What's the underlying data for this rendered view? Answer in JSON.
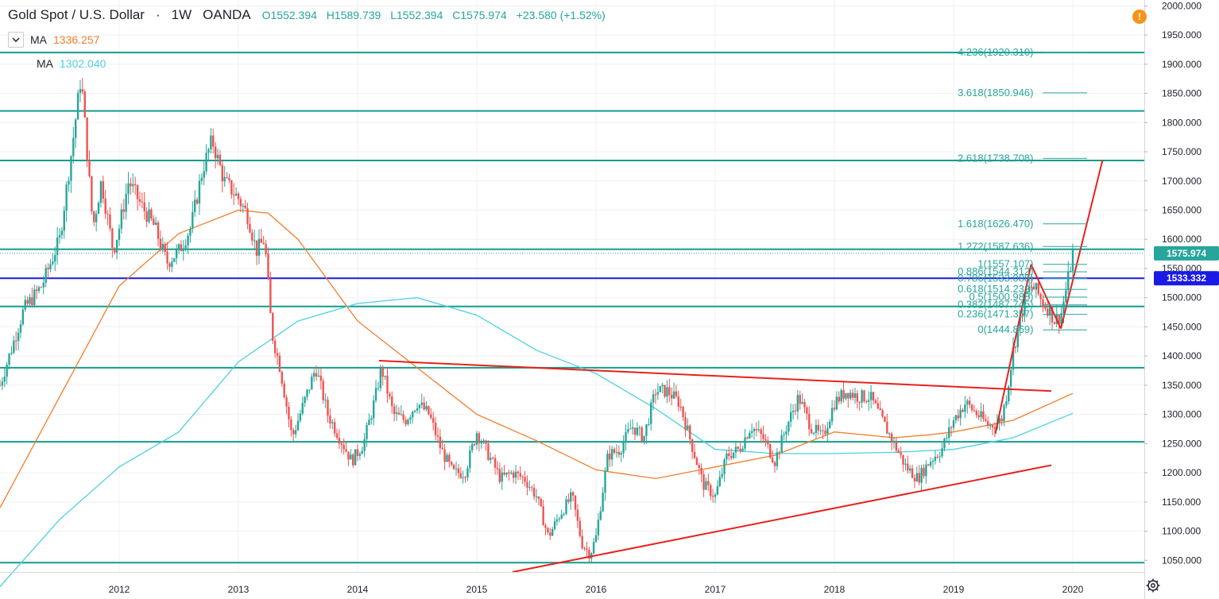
{
  "header": {
    "symbol": "Gold Spot / U.S. Dollar",
    "interval": "1W",
    "broker": "OANDA",
    "open": "O1552.394",
    "high": "H1589.739",
    "low": "L1552.394",
    "close": "C1575.974",
    "change": "+23.580 (+1.52%)"
  },
  "indicators": [
    {
      "label": "MA",
      "value": "1336.257",
      "color": "#f57c2a"
    },
    {
      "label": "MA",
      "value": "1302.040",
      "color": "#4dd0e1"
    }
  ],
  "icons": {
    "collapse": "chevron-down-icon",
    "alert": "exclamation-icon",
    "settings": "gear-icon"
  },
  "price_labels": {
    "last": "1575.974",
    "hline": "1533.332"
  },
  "colors": {
    "up": "#26a69a",
    "down": "#ef5350",
    "horizontal_line": "#159b8c",
    "blue_line": "#1a1ae6",
    "trend_line": "#e8211b",
    "ma_fast": "#f57c2a",
    "ma_slow": "#4dd0e1"
  },
  "chart_data": {
    "type": "candlestick",
    "title": "Gold Spot / U.S. Dollar",
    "x_ticks": [
      "2012",
      "2013",
      "2014",
      "2015",
      "2016",
      "2017",
      "2018",
      "2019",
      "2020"
    ],
    "y_ticks": [
      "1050.000",
      "1100.000",
      "1150.000",
      "1200.000",
      "1250.000",
      "1300.000",
      "1350.000",
      "1400.000",
      "1450.000",
      "1500.000",
      "1550.000",
      "1600.000",
      "1650.000",
      "1700.000",
      "1750.000",
      "1800.000",
      "1850.000",
      "1900.000",
      "1950.000",
      "2000.000"
    ],
    "ylim": [
      1030,
      2010
    ],
    "xlim": [
      2011.0,
      2020.6
    ],
    "price_path": [
      [
        2011.0,
        1350
      ],
      [
        2011.2,
        1480
      ],
      [
        2011.35,
        1520
      ],
      [
        2011.5,
        1600
      ],
      [
        2011.6,
        1750
      ],
      [
        2011.68,
        1880
      ],
      [
        2011.78,
        1620
      ],
      [
        2011.85,
        1700
      ],
      [
        2011.95,
        1580
      ],
      [
        2012.0,
        1620
      ],
      [
        2012.08,
        1700
      ],
      [
        2012.18,
        1660
      ],
      [
        2012.3,
        1620
      ],
      [
        2012.4,
        1560
      ],
      [
        2012.5,
        1580
      ],
      [
        2012.6,
        1620
      ],
      [
        2012.7,
        1720
      ],
      [
        2012.78,
        1770
      ],
      [
        2012.88,
        1700
      ],
      [
        2013.0,
        1670
      ],
      [
        2013.08,
        1640
      ],
      [
        2013.15,
        1580
      ],
      [
        2013.22,
        1600
      ],
      [
        2013.28,
        1440
      ],
      [
        2013.35,
        1380
      ],
      [
        2013.45,
        1260
      ],
      [
        2013.55,
        1320
      ],
      [
        2013.65,
        1380
      ],
      [
        2013.75,
        1300
      ],
      [
        2013.85,
        1260
      ],
      [
        2013.95,
        1220
      ],
      [
        2014.05,
        1250
      ],
      [
        2014.15,
        1330
      ],
      [
        2014.2,
        1380
      ],
      [
        2014.3,
        1300
      ],
      [
        2014.4,
        1290
      ],
      [
        2014.5,
        1320
      ],
      [
        2014.6,
        1300
      ],
      [
        2014.7,
        1240
      ],
      [
        2014.8,
        1200
      ],
      [
        2014.9,
        1200
      ],
      [
        2015.0,
        1270
      ],
      [
        2015.1,
        1230
      ],
      [
        2015.2,
        1190
      ],
      [
        2015.3,
        1200
      ],
      [
        2015.4,
        1190
      ],
      [
        2015.5,
        1160
      ],
      [
        2015.6,
        1090
      ],
      [
        2015.7,
        1130
      ],
      [
        2015.8,
        1160
      ],
      [
        2015.88,
        1080
      ],
      [
        2015.95,
        1060
      ],
      [
        2016.0,
        1090
      ],
      [
        2016.1,
        1230
      ],
      [
        2016.2,
        1240
      ],
      [
        2016.3,
        1280
      ],
      [
        2016.4,
        1260
      ],
      [
        2016.5,
        1340
      ],
      [
        2016.6,
        1340
      ],
      [
        2016.7,
        1320
      ],
      [
        2016.8,
        1250
      ],
      [
        2016.9,
        1180
      ],
      [
        2017.0,
        1160
      ],
      [
        2017.1,
        1230
      ],
      [
        2017.2,
        1240
      ],
      [
        2017.3,
        1280
      ],
      [
        2017.4,
        1260
      ],
      [
        2017.5,
        1220
      ],
      [
        2017.6,
        1280
      ],
      [
        2017.7,
        1330
      ],
      [
        2017.8,
        1280
      ],
      [
        2017.9,
        1260
      ],
      [
        2018.0,
        1320
      ],
      [
        2018.1,
        1340
      ],
      [
        2018.2,
        1330
      ],
      [
        2018.3,
        1330
      ],
      [
        2018.4,
        1290
      ],
      [
        2018.5,
        1250
      ],
      [
        2018.6,
        1210
      ],
      [
        2018.7,
        1190
      ],
      [
        2018.8,
        1220
      ],
      [
        2018.9,
        1240
      ],
      [
        2019.0,
        1290
      ],
      [
        2019.1,
        1320
      ],
      [
        2019.2,
        1300
      ],
      [
        2019.3,
        1280
      ],
      [
        2019.4,
        1290
      ],
      [
        2019.45,
        1340
      ],
      [
        2019.5,
        1410
      ],
      [
        2019.6,
        1500
      ],
      [
        2019.65,
        1520
      ],
      [
        2019.7,
        1510
      ],
      [
        2019.75,
        1490
      ],
      [
        2019.8,
        1480
      ],
      [
        2019.85,
        1460
      ],
      [
        2019.9,
        1470
      ],
      [
        2019.95,
        1520
      ],
      [
        2020.0,
        1576
      ]
    ],
    "ma_fast": [
      [
        2011.0,
        1140
      ],
      [
        2011.5,
        1330
      ],
      [
        2012.0,
        1520
      ],
      [
        2012.5,
        1610
      ],
      [
        2013.0,
        1650
      ],
      [
        2013.25,
        1645
      ],
      [
        2013.5,
        1600
      ],
      [
        2014.0,
        1460
      ],
      [
        2014.5,
        1380
      ],
      [
        2015.0,
        1300
      ],
      [
        2015.5,
        1255
      ],
      [
        2016.0,
        1205
      ],
      [
        2016.5,
        1190
      ],
      [
        2017.0,
        1210
      ],
      [
        2017.5,
        1230
      ],
      [
        2018.0,
        1270
      ],
      [
        2018.5,
        1260
      ],
      [
        2018.8,
        1265
      ],
      [
        2019.0,
        1270
      ],
      [
        2019.5,
        1290
      ],
      [
        2020.0,
        1336
      ]
    ],
    "ma_slow": [
      [
        2011.0,
        1005
      ],
      [
        2011.5,
        1120
      ],
      [
        2012.0,
        1210
      ],
      [
        2012.5,
        1270
      ],
      [
        2013.0,
        1390
      ],
      [
        2013.5,
        1460
      ],
      [
        2014.0,
        1490
      ],
      [
        2014.5,
        1500
      ],
      [
        2015.0,
        1470
      ],
      [
        2015.5,
        1410
      ],
      [
        2016.0,
        1370
      ],
      [
        2016.5,
        1310
      ],
      [
        2017.0,
        1240
      ],
      [
        2017.5,
        1233
      ],
      [
        2018.0,
        1233
      ],
      [
        2018.5,
        1235
      ],
      [
        2019.0,
        1240
      ],
      [
        2019.5,
        1260
      ],
      [
        2020.0,
        1302
      ]
    ],
    "horizontal_levels": [
      1920,
      1820,
      1735,
      1583,
      1485,
      1380,
      1253,
      1046
    ],
    "highlighted_level": 1533.332,
    "last_price": 1575.974,
    "trend_lines": [
      {
        "from": [
          2014.18,
          1392
        ],
        "to": [
          2019.82,
          1340
        ]
      },
      {
        "from": [
          2015.3,
          1030
        ],
        "to": [
          2019.82,
          1213
        ]
      },
      {
        "from": [
          2019.35,
          1267
        ],
        "to": [
          2019.65,
          1557
        ]
      },
      {
        "from": [
          2019.65,
          1557
        ],
        "to": [
          2019.9,
          1447
        ]
      },
      {
        "from": [
          2019.9,
          1447
        ],
        "to": [
          2020.25,
          1736
        ]
      }
    ],
    "fibonacci": [
      {
        "ratio": "4.236",
        "price": "1920.310"
      },
      {
        "ratio": "3.618",
        "price": "1850.946"
      },
      {
        "ratio": "2.618",
        "price": "1738.708"
      },
      {
        "ratio": "1.618",
        "price": "1626.470"
      },
      {
        "ratio": "1.272",
        "price": "1587.636"
      },
      {
        "ratio": "1",
        "price": "1557.107"
      },
      {
        "ratio": "0.886",
        "price": "1544.312"
      },
      {
        "ratio": "0.786",
        "price": "1533.088"
      },
      {
        "ratio": "0.618",
        "price": "1514.232"
      },
      {
        "ratio": "0.5",
        "price": "1500.988"
      },
      {
        "ratio": "0.382",
        "price": "1487.745"
      },
      {
        "ratio": "0.236",
        "price": "1471.357"
      },
      {
        "ratio": "0",
        "price": "1444.869"
      }
    ],
    "grid": true,
    "legend": "top-left"
  }
}
